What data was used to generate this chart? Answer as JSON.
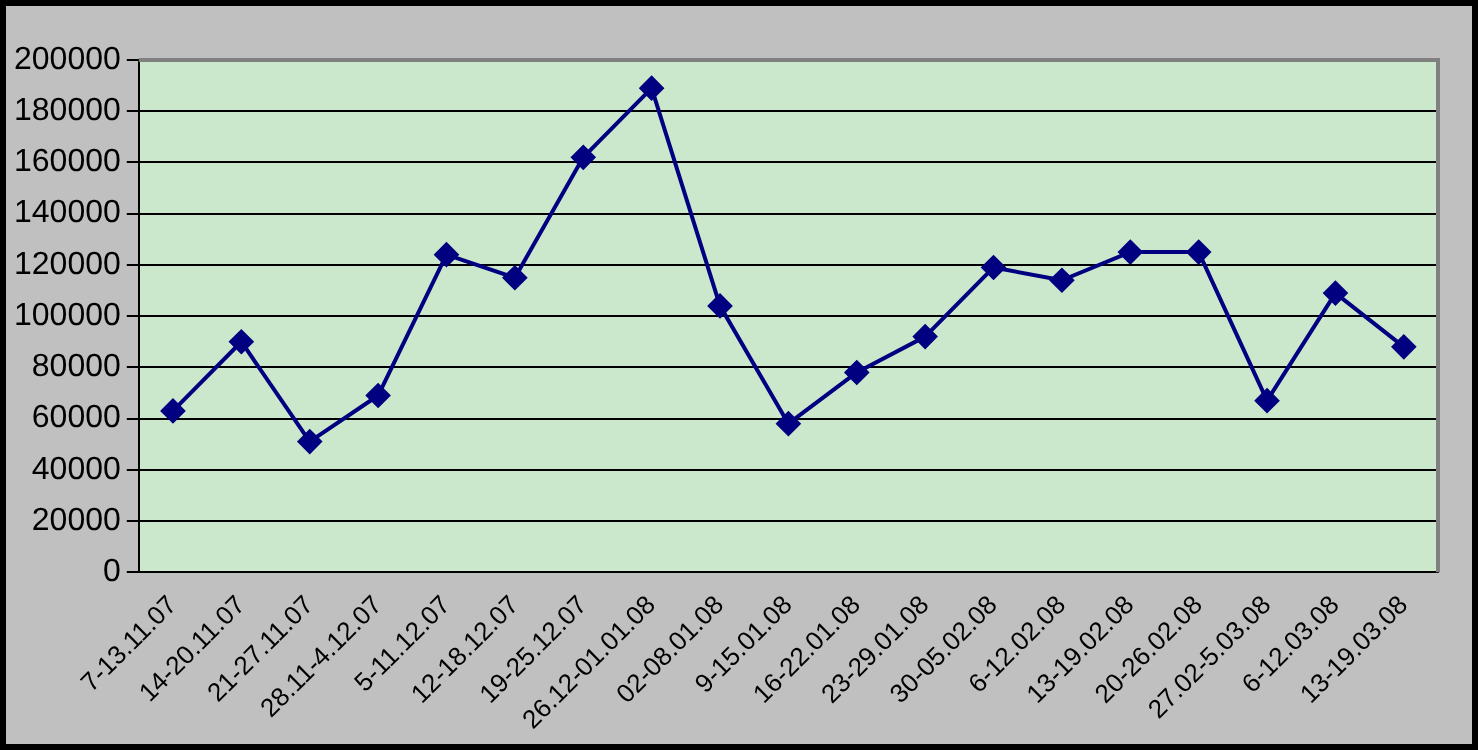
{
  "chart_data": {
    "type": "line",
    "categories": [
      "7-13.11.07",
      "14-20.11.07",
      "21-27.11.07",
      "28.11-4.12.07",
      "5-11.12.07",
      "12-18.12.07",
      "19-25.12.07",
      "26.12-01.01.08",
      "02-08.01.08",
      "9-15.01.08",
      "16-22.01.08",
      "23-29.01.08",
      "30-05.02.08",
      "6-12.02.08",
      "13-19.02.08",
      "20-26.02.08",
      "27.02-5.03.08",
      "6-12.03.08",
      "13-19.03.08"
    ],
    "series": [
      {
        "color": "#000080",
        "values": [
          63000,
          90000,
          51000,
          69000,
          124000,
          115000,
          162000,
          189000,
          104000,
          58000,
          78000,
          92000,
          119000,
          114000,
          125000,
          125000,
          67000,
          109000,
          88000
        ]
      }
    ],
    "ylim": [
      0,
      200000
    ],
    "yticks": [
      0,
      20000,
      40000,
      60000,
      80000,
      100000,
      120000,
      140000,
      160000,
      180000,
      200000
    ],
    "grid": "y",
    "legend": false,
    "marker": "diamond",
    "line_style": "solid"
  }
}
